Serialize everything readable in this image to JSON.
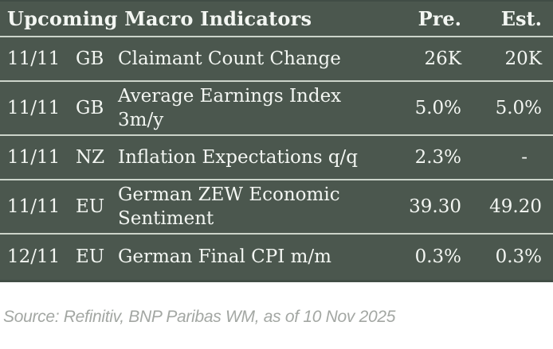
{
  "table": {
    "title": "Upcoming Macro Indicators",
    "columns": {
      "pre": "Pre.",
      "est": "Est."
    },
    "rows": [
      {
        "date": "11/11",
        "country": "GB",
        "indicator": "Claimant Count Change",
        "pre": "26K",
        "est": "20K"
      },
      {
        "date": "11/11",
        "country": "GB",
        "indicator": "Average Earnings Index\n3m/y",
        "pre": "5.0%",
        "est": "5.0%"
      },
      {
        "date": "11/11",
        "country": "NZ",
        "indicator": "Inflation Expectations q/q",
        "pre": "2.3%",
        "est": "-"
      },
      {
        "date": "11/11",
        "country": "EU",
        "indicator": "German ZEW Economic\nSentiment",
        "pre": "39.30",
        "est": "49.20"
      },
      {
        "date": "12/11",
        "country": "EU",
        "indicator": "German Final CPI m/m",
        "pre": "0.3%",
        "est": "0.3%"
      }
    ]
  },
  "footer": {
    "source": "Source: Refinitiv, BNP Paribas WM, as of 10 Nov 2025"
  },
  "colors": {
    "table_bg": "#4b574e",
    "table_edge": "#414d45",
    "separator": "#ccd4ca",
    "table_text": "#f3f6f2",
    "footer_bg": "#ffffff",
    "footer_text": "#a3a7a3"
  }
}
